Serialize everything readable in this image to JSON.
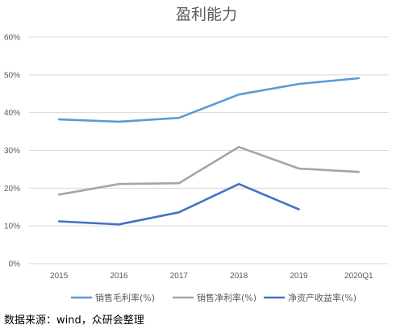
{
  "chart_data": {
    "type": "line",
    "title": "盈利能力",
    "categories": [
      "2015",
      "2016",
      "2017",
      "2018",
      "2019",
      "2020Q1"
    ],
    "yticks": [
      "0%",
      "10%",
      "20%",
      "30%",
      "40%",
      "50%",
      "60%"
    ],
    "ylim": [
      0,
      60
    ],
    "grid": true,
    "legend_position": "bottom",
    "series": [
      {
        "name": "销售毛利率(%)",
        "color": "#5B9BD5",
        "values": [
          38.2,
          37.6,
          38.6,
          44.8,
          47.6,
          49.1
        ]
      },
      {
        "name": "销售净利率(%)",
        "color": "#A5A5A5",
        "values": [
          18.3,
          21.1,
          21.3,
          30.9,
          25.2,
          24.3
        ]
      },
      {
        "name": "净资产收益率(%)",
        "color": "#4472C4",
        "values": [
          11.2,
          10.4,
          13.6,
          21.1,
          14.4,
          null
        ]
      }
    ]
  },
  "source_text": "数据来源：wind，众研会整理"
}
